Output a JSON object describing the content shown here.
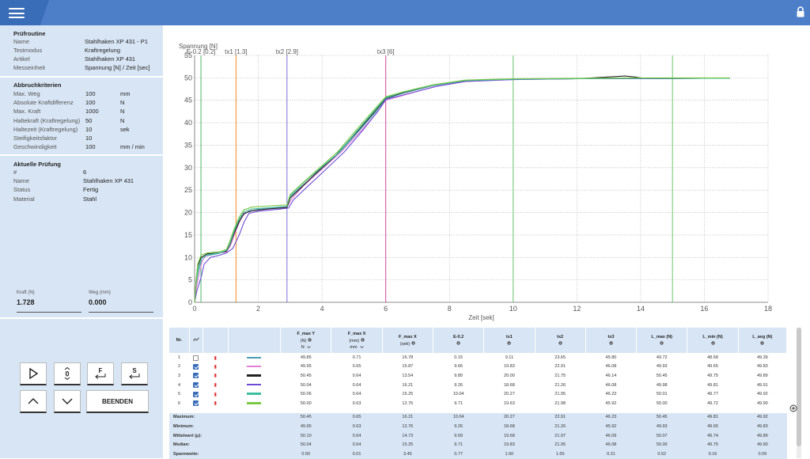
{
  "topbar": {
    "menu_icon": "hamburger-icon",
    "lock_icon": "lock-icon",
    "accent": "#4d7fc9"
  },
  "pruefroutine": {
    "title": "Prüfroutine",
    "rows": [
      {
        "label": "Name",
        "value": "Stahlhaken XP 431 - P1"
      },
      {
        "label": "Testmodus",
        "value": "Kraftregelung"
      },
      {
        "label": "Artikel",
        "value": "Stahlhaken XP 431"
      },
      {
        "label": "Messeinheit",
        "value": "Spannung [N] / Zeit [sec]"
      }
    ]
  },
  "abbruch": {
    "title": "Abbruchkriterien",
    "rows": [
      {
        "label": "Max. Weg",
        "value": "100",
        "unit": "mm"
      },
      {
        "label": "Absolute Kraftdifferenz",
        "value": "100",
        "unit": "N"
      },
      {
        "label": "Max. Kraft",
        "value": "1000",
        "unit": "N"
      },
      {
        "label": "Haltekraft (Kraftregelung)",
        "value": "50",
        "unit": "N"
      },
      {
        "label": "Haltezeit (Kraftregelung)",
        "value": "10",
        "unit": "sek"
      },
      {
        "label": "Steifigkeitsfaktor",
        "value": "10",
        "unit": ""
      },
      {
        "label": "Geschwindigkeit",
        "value": "100",
        "unit": "mm / min"
      }
    ]
  },
  "aktuell": {
    "title": "Aktuelle Prüfung",
    "rows": [
      {
        "label": "#",
        "value": "6"
      },
      {
        "label": "Name",
        "value": "Stahlhaken XP 431"
      },
      {
        "label": "Status",
        "value": "Fertig"
      },
      {
        "label": "Material",
        "value": "Stahl"
      }
    ]
  },
  "sensors": {
    "kraft_label": "Kraft (N)",
    "kraft_value": "1.728",
    "weg_label": "Weg (mm)",
    "weg_value": "0.000"
  },
  "controls": {
    "play_icon": "play-icon",
    "zero_label": "0",
    "f_label": "F",
    "s_label": "S",
    "up_icon": "chevron-up-icon",
    "down_icon": "chevron-down-icon",
    "stop_label": "BEENDEN"
  },
  "chart_data": {
    "type": "line",
    "ylabel": "Spannung [N]",
    "xlabel": "Zeit [sek]",
    "xlim": [
      0,
      18
    ],
    "ylim": [
      0,
      55
    ],
    "xticks": [
      "0",
      "2",
      "4",
      "6",
      "8",
      "10",
      "12",
      "14",
      "16",
      "18"
    ],
    "yticks": [
      "0",
      "5",
      "10",
      "15",
      "20",
      "25",
      "30",
      "35",
      "40",
      "45",
      "50",
      "55"
    ],
    "grid": true,
    "markers": [
      {
        "label": "E-0.2 [0.2]",
        "x": 0.2,
        "color": "#4cb86a"
      },
      {
        "label": "tx1 [1.3]",
        "x": 1.3,
        "color": "#f28a1e"
      },
      {
        "label": "tx2 [2.9]",
        "x": 2.9,
        "color": "#7b6fd8"
      },
      {
        "label": "tx3 [6]",
        "x": 6.0,
        "color": "#d14aa0"
      },
      {
        "label": "",
        "x": 10.0,
        "color": "#6cc46c"
      },
      {
        "label": "",
        "x": 15.0,
        "color": "#6cc46c"
      }
    ],
    "series": [
      {
        "color": "#4a9fb0",
        "points": [
          [
            0,
            0
          ],
          [
            0.05,
            4
          ],
          [
            0.12,
            7
          ],
          [
            0.2,
            9
          ],
          [
            0.35,
            10.3
          ],
          [
            0.7,
            10.8
          ],
          [
            1.0,
            11.3
          ],
          [
            1.12,
            12.5
          ],
          [
            1.2,
            15
          ],
          [
            1.35,
            17.5
          ],
          [
            1.5,
            19.3
          ],
          [
            1.7,
            20.3
          ],
          [
            2.0,
            20.7
          ],
          [
            2.5,
            21.0
          ],
          [
            2.9,
            21.3
          ],
          [
            3.0,
            23.5
          ],
          [
            3.3,
            25.5
          ],
          [
            3.8,
            28.5
          ],
          [
            4.5,
            33
          ],
          [
            5.2,
            38.5
          ],
          [
            5.7,
            42.5
          ],
          [
            6.0,
            45.3
          ],
          [
            6.5,
            46.5
          ],
          [
            7.5,
            48.3
          ],
          [
            8.5,
            49.3
          ],
          [
            10,
            49.7
          ],
          [
            12,
            49.8
          ],
          [
            13.5,
            49.9
          ],
          [
            14,
            49.8
          ],
          [
            16,
            49.9
          ],
          [
            16.8,
            49.9
          ]
        ]
      },
      {
        "color": "#e47fd6",
        "points": [
          [
            0,
            0
          ],
          [
            0.05,
            3
          ],
          [
            0.15,
            6.5
          ],
          [
            0.25,
            9.5
          ],
          [
            0.4,
            10.5
          ],
          [
            0.7,
            11
          ],
          [
            1.0,
            11.2
          ],
          [
            1.15,
            13
          ],
          [
            1.3,
            16
          ],
          [
            1.45,
            18.5
          ],
          [
            1.6,
            20
          ],
          [
            1.9,
            20.5
          ],
          [
            2.5,
            20.9
          ],
          [
            2.9,
            21.2
          ],
          [
            3.05,
            23
          ],
          [
            3.4,
            25.8
          ],
          [
            3.9,
            29
          ],
          [
            4.6,
            33.5
          ],
          [
            5.2,
            38
          ],
          [
            5.7,
            42
          ],
          [
            6.0,
            45
          ],
          [
            6.5,
            46
          ],
          [
            7.5,
            48
          ],
          [
            8.5,
            49.2
          ],
          [
            10,
            49.6
          ],
          [
            12,
            49.8
          ],
          [
            14,
            49.9
          ],
          [
            16,
            49.9
          ],
          [
            16.8,
            49.9
          ]
        ]
      },
      {
        "color": "#222222",
        "points": [
          [
            0,
            0
          ],
          [
            0.05,
            5
          ],
          [
            0.1,
            8
          ],
          [
            0.2,
            10
          ],
          [
            0.4,
            10.8
          ],
          [
            0.8,
            11
          ],
          [
            1.0,
            11.4
          ],
          [
            1.1,
            12.8
          ],
          [
            1.25,
            15.5
          ],
          [
            1.4,
            18
          ],
          [
            1.55,
            19.8
          ],
          [
            1.8,
            20.4
          ],
          [
            2.3,
            20.8
          ],
          [
            2.9,
            21.1
          ],
          [
            3.0,
            23.2
          ],
          [
            3.35,
            25.6
          ],
          [
            3.8,
            28.7
          ],
          [
            4.4,
            32.5
          ],
          [
            5.1,
            38
          ],
          [
            5.6,
            42
          ],
          [
            6.0,
            45.5
          ],
          [
            6.5,
            46.6
          ],
          [
            7.5,
            48.4
          ],
          [
            8.5,
            49.4
          ],
          [
            10,
            49.7
          ],
          [
            12,
            49.8
          ],
          [
            13.5,
            50.4
          ],
          [
            13.8,
            50.2
          ],
          [
            14.2,
            49.8
          ],
          [
            16,
            49.9
          ],
          [
            16.8,
            49.9
          ]
        ]
      },
      {
        "color": "#6e4bd6",
        "points": [
          [
            0,
            0
          ],
          [
            0.07,
            2.5
          ],
          [
            0.2,
            5.5
          ],
          [
            0.3,
            8.5
          ],
          [
            0.5,
            10
          ],
          [
            0.8,
            10.5
          ],
          [
            1.0,
            11
          ],
          [
            1.2,
            12
          ],
          [
            1.4,
            15
          ],
          [
            1.55,
            17.8
          ],
          [
            1.7,
            19.8
          ],
          [
            2.0,
            20.3
          ],
          [
            2.6,
            20.7
          ],
          [
            2.95,
            21
          ],
          [
            3.1,
            22.8
          ],
          [
            3.5,
            25.5
          ],
          [
            4.0,
            28.8
          ],
          [
            4.7,
            33.5
          ],
          [
            5.3,
            38.5
          ],
          [
            5.8,
            43
          ],
          [
            6.0,
            45.2
          ],
          [
            6.6,
            46.3
          ],
          [
            7.6,
            48.1
          ],
          [
            8.5,
            49.2
          ],
          [
            10,
            49.6
          ],
          [
            12,
            49.8
          ],
          [
            14,
            49.8
          ],
          [
            16,
            49.9
          ],
          [
            16.8,
            49.9
          ]
        ]
      },
      {
        "color": "#3fbfa0",
        "points": [
          [
            0,
            0
          ],
          [
            0.05,
            4.5
          ],
          [
            0.12,
            7.5
          ],
          [
            0.22,
            9.8
          ],
          [
            0.4,
            10.6
          ],
          [
            0.8,
            11
          ],
          [
            1.0,
            11.6
          ],
          [
            1.1,
            13
          ],
          [
            1.25,
            16
          ],
          [
            1.4,
            18.6
          ],
          [
            1.55,
            20.2
          ],
          [
            1.8,
            20.8
          ],
          [
            2.4,
            21.1
          ],
          [
            2.9,
            21.4
          ],
          [
            3.0,
            23.8
          ],
          [
            3.3,
            25.9
          ],
          [
            3.8,
            29
          ],
          [
            4.5,
            33.2
          ],
          [
            5.1,
            38.2
          ],
          [
            5.6,
            42.3
          ],
          [
            6.0,
            45.6
          ],
          [
            6.5,
            46.7
          ],
          [
            7.5,
            48.4
          ],
          [
            8.5,
            49.4
          ],
          [
            10,
            49.7
          ],
          [
            12,
            49.8
          ],
          [
            14,
            49.9
          ],
          [
            16,
            49.9
          ],
          [
            16.8,
            49.9
          ]
        ]
      },
      {
        "color": "#7ac943",
        "points": [
          [
            0,
            0
          ],
          [
            0.05,
            5
          ],
          [
            0.1,
            8.5
          ],
          [
            0.2,
            10.5
          ],
          [
            0.4,
            11
          ],
          [
            0.8,
            11.3
          ],
          [
            1.0,
            11.8
          ],
          [
            1.1,
            13.5
          ],
          [
            1.25,
            16.5
          ],
          [
            1.4,
            19
          ],
          [
            1.55,
            20.6
          ],
          [
            1.8,
            21.2
          ],
          [
            2.4,
            21.5
          ],
          [
            2.9,
            21.7
          ],
          [
            3.0,
            24
          ],
          [
            3.3,
            26
          ],
          [
            3.8,
            29.2
          ],
          [
            4.5,
            33.6
          ],
          [
            5.1,
            38.6
          ],
          [
            5.6,
            42.6
          ],
          [
            6.0,
            45.8
          ],
          [
            6.5,
            46.8
          ],
          [
            7.5,
            48.5
          ],
          [
            8.5,
            49.5
          ],
          [
            10,
            49.8
          ],
          [
            12,
            49.9
          ],
          [
            14,
            50
          ],
          [
            16,
            50
          ],
          [
            16.8,
            50
          ]
        ]
      }
    ]
  },
  "table": {
    "headers": [
      {
        "label": "Nr.",
        "unit": ""
      },
      {
        "label": "",
        "unit": ""
      },
      {
        "label": "",
        "unit": ""
      },
      {
        "label": "",
        "unit": ""
      },
      {
        "label": "F_max Y",
        "sub": "(N)",
        "unit": "N"
      },
      {
        "label": "F_max X",
        "sub": "(mm)",
        "unit": "mm"
      },
      {
        "label": "F_max X",
        "sub": "(sek)",
        "unit": ""
      },
      {
        "label": "E-0.2",
        "sub": "",
        "unit": ""
      },
      {
        "label": "tx1",
        "sub": "",
        "unit": ""
      },
      {
        "label": "tx2",
        "sub": "",
        "unit": ""
      },
      {
        "label": "tx3",
        "sub": "",
        "unit": ""
      },
      {
        "label": "L_max (N)",
        "sub": "",
        "unit": ""
      },
      {
        "label": "L_min (N)",
        "sub": "",
        "unit": ""
      },
      {
        "label": "L_avg (N)",
        "sub": "",
        "unit": ""
      }
    ],
    "rows": [
      {
        "nr": "1",
        "checked": false,
        "color": "#4a9fb0",
        "v": [
          "49.85",
          "0.71",
          "16.78",
          "0.15",
          "9.11",
          "23.65",
          "45.80",
          "49.72",
          "48.68",
          "49.39"
        ]
      },
      {
        "nr": "2",
        "checked": true,
        "color": "#e47fd6",
        "v": [
          "49.95",
          "0.65",
          "15.87",
          "9.66",
          "19.83",
          "22.91",
          "46.08",
          "49.93",
          "49.65",
          "49.83"
        ]
      },
      {
        "nr": "3",
        "checked": true,
        "color": "#222222",
        "v": [
          "50.45",
          "0.64",
          "13.54",
          "9.80",
          "20.00",
          "21.75",
          "46.14",
          "50.45",
          "49.75",
          "49.89"
        ]
      },
      {
        "nr": "4",
        "checked": true,
        "color": "#6e4bd6",
        "v": [
          "50.04",
          "0.64",
          "16.21",
          "9.26",
          "18.68",
          "21.26",
          "46.08",
          "49.98",
          "49.81",
          "49.91"
        ]
      },
      {
        "nr": "5",
        "checked": true,
        "color": "#3fbfa0",
        "v": [
          "50.06",
          "0.64",
          "15.25",
          "10.04",
          "20.27",
          "21.95",
          "46.23",
          "50.01",
          "49.77",
          "49.92"
        ]
      },
      {
        "nr": "6",
        "checked": true,
        "color": "#7ac943",
        "v": [
          "50.00",
          "0.63",
          "12.76",
          "9.71",
          "19.63",
          "21.98",
          "45.92",
          "50.00",
          "49.72",
          "49.90"
        ]
      }
    ],
    "stats": [
      {
        "label": "Maximum:",
        "v": [
          "50.45",
          "0.65",
          "16.21",
          "10.04",
          "20.27",
          "22.91",
          "46.23",
          "50.45",
          "49.81",
          "49.92"
        ]
      },
      {
        "label": "Minimum:",
        "v": [
          "49.95",
          "0.63",
          "12.76",
          "9.26",
          "18.68",
          "21.26",
          "45.92",
          "49.93",
          "49.65",
          "49.83"
        ]
      },
      {
        "label": "Mittelwert (μ):",
        "v": [
          "50.10",
          "0.64",
          "14.73",
          "9.69",
          "19.68",
          "21.97",
          "46.09",
          "50.07",
          "49.74",
          "49.89"
        ]
      },
      {
        "label": "Median:",
        "v": [
          "50.04",
          "0.64",
          "15.25",
          "9.71",
          "19.83",
          "21.95",
          "46.08",
          "50.00",
          "49.75",
          "49.90"
        ]
      },
      {
        "label": "Spannweite:",
        "v": [
          "0.50",
          "0.01",
          "3.45",
          "0.77",
          "1.60",
          "1.65",
          "0.31",
          "0.52",
          "0.16",
          "0.09"
        ]
      }
    ]
  }
}
